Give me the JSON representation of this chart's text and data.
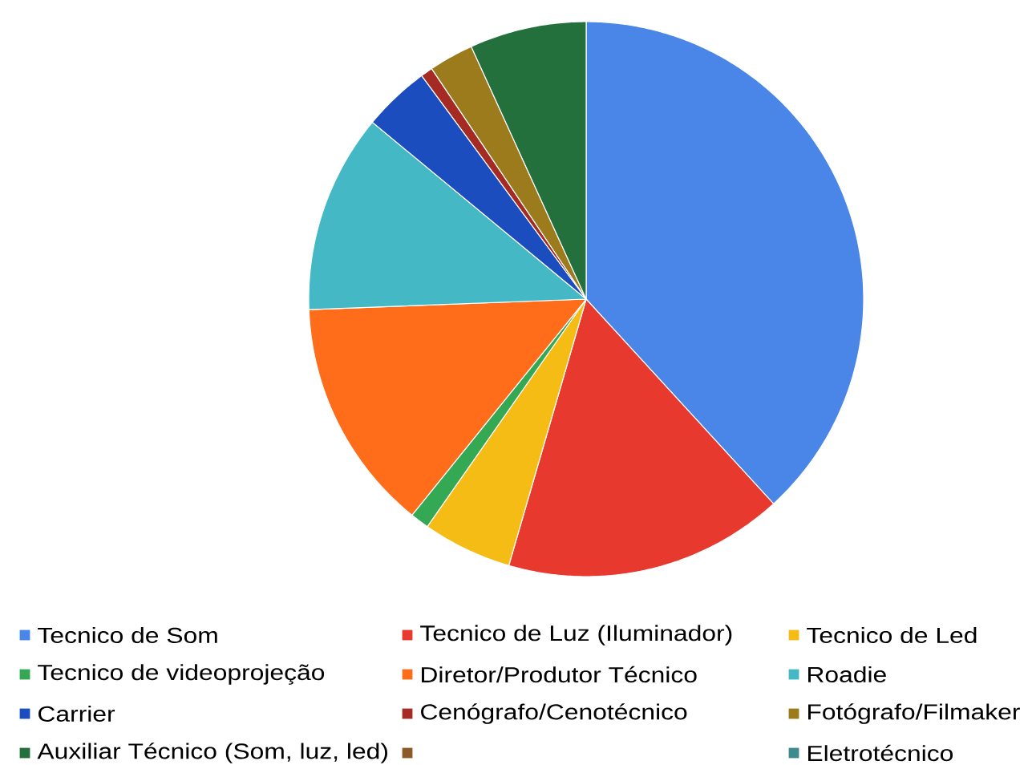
{
  "chart_data": {
    "type": "pie",
    "categories": [
      "Tecnico de Som",
      "Tecnico de Luz (Iluminador)",
      "Tecnico de Led",
      "Tecnico de videoprojeção",
      "Diretor/Produtor Técnico",
      "Roadie",
      "Carrier",
      "Cenógrafo/Cenotécnico",
      "Fotógrafo/Filmaker",
      "Auxiliar Técnico (Som, luz, led)",
      null,
      "Eletrotécnico"
    ],
    "values": [
      38.2,
      16.3,
      5.2,
      1.1,
      13.6,
      11.6,
      3.9,
      0.7,
      2.6,
      6.8,
      0,
      0
    ],
    "colors": [
      "#4a86e8",
      "#e8392f",
      "#f6bc16",
      "#34a853",
      "#ff6d1a",
      "#44b8c4",
      "#1c4dbf",
      "#a52a24",
      "#9c7b1c",
      "#23703c",
      "#8c5a28",
      "#3d8a8f"
    ],
    "legend": "bottom"
  }
}
